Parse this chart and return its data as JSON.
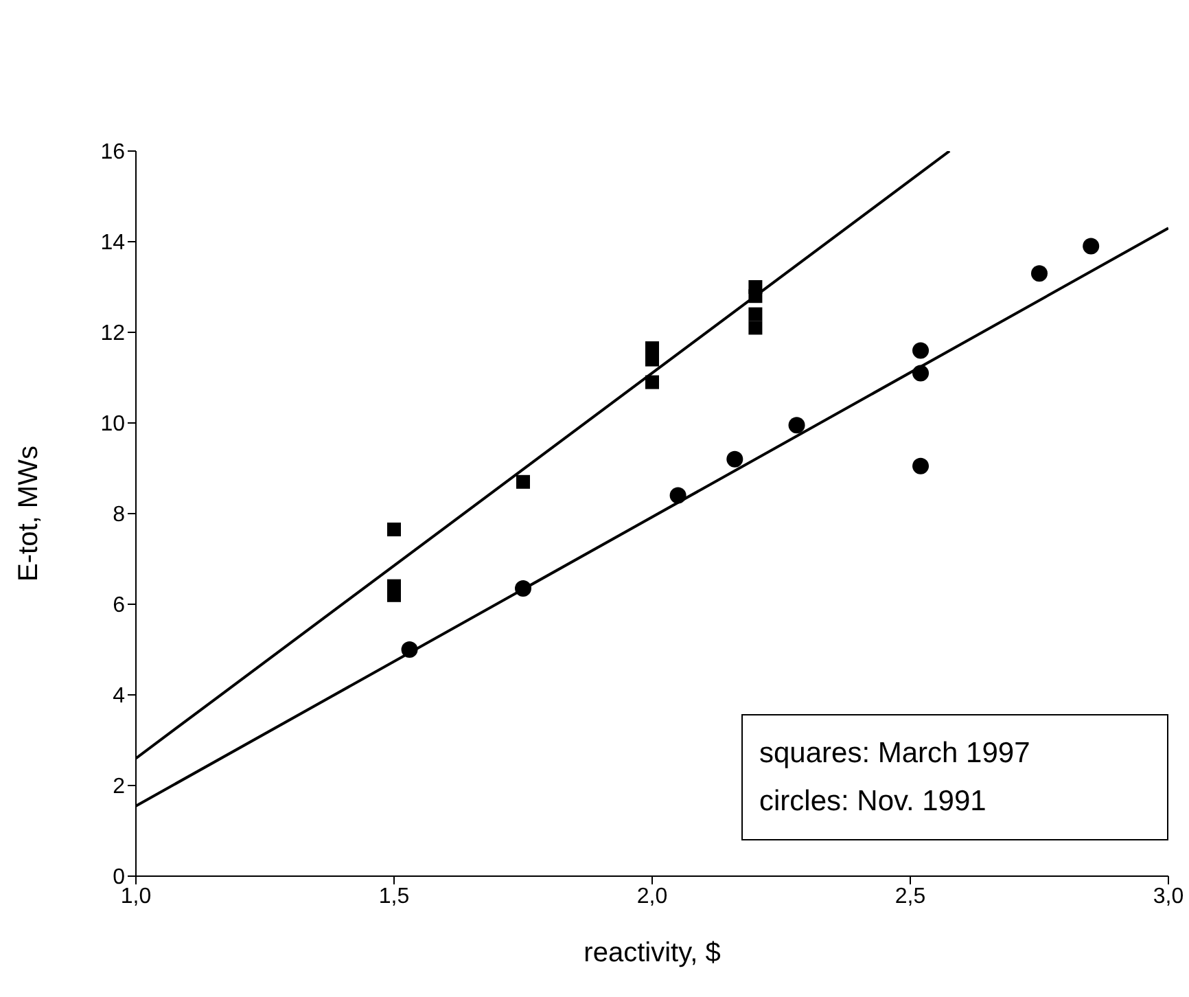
{
  "chart_data": {
    "type": "scatter",
    "xlabel": "reactivity, $",
    "ylabel": "E-tot, MWs",
    "xlim": [
      1.0,
      3.0
    ],
    "xticks": [
      {
        "value": 1.0,
        "label": "1,0"
      },
      {
        "value": 1.5,
        "label": "1,5"
      },
      {
        "value": 2.0,
        "label": "2,0"
      },
      {
        "value": 2.5,
        "label": "2,5"
      },
      {
        "value": 3.0,
        "label": "3,0"
      }
    ],
    "ylim": [
      0,
      16
    ],
    "yticks": [
      0,
      2,
      4,
      6,
      8,
      10,
      12,
      14,
      16
    ],
    "grid": false,
    "legend": false,
    "annotations": [
      "squares: March 1997",
      "circles: Nov. 1991"
    ],
    "series": [
      {
        "type": "scatter",
        "marker": "square",
        "color": "#000000",
        "x": [
          1.5,
          1.5,
          1.5,
          1.75,
          2.0,
          2.0,
          2.0,
          2.2,
          2.2,
          2.2,
          2.2
        ],
        "values": [
          7.65,
          6.4,
          6.2,
          8.7,
          10.9,
          11.4,
          11.65,
          12.1,
          12.4,
          12.8,
          13.0
        ]
      },
      {
        "type": "scatter",
        "marker": "circle",
        "color": "#000000",
        "x": [
          1.53,
          1.75,
          2.05,
          2.16,
          2.28,
          2.52,
          2.52,
          2.52,
          2.75,
          2.85
        ],
        "values": [
          5.0,
          6.35,
          8.4,
          9.2,
          9.95,
          11.6,
          11.1,
          9.05,
          13.3,
          13.9
        ]
      },
      {
        "type": "line",
        "color": "#000000",
        "x": [
          1.0,
          2.576
        ],
        "values": [
          2.6,
          16.0
        ]
      },
      {
        "type": "line",
        "color": "#000000",
        "x": [
          1.0,
          3.0
        ],
        "values": [
          1.55,
          14.3
        ]
      }
    ]
  }
}
